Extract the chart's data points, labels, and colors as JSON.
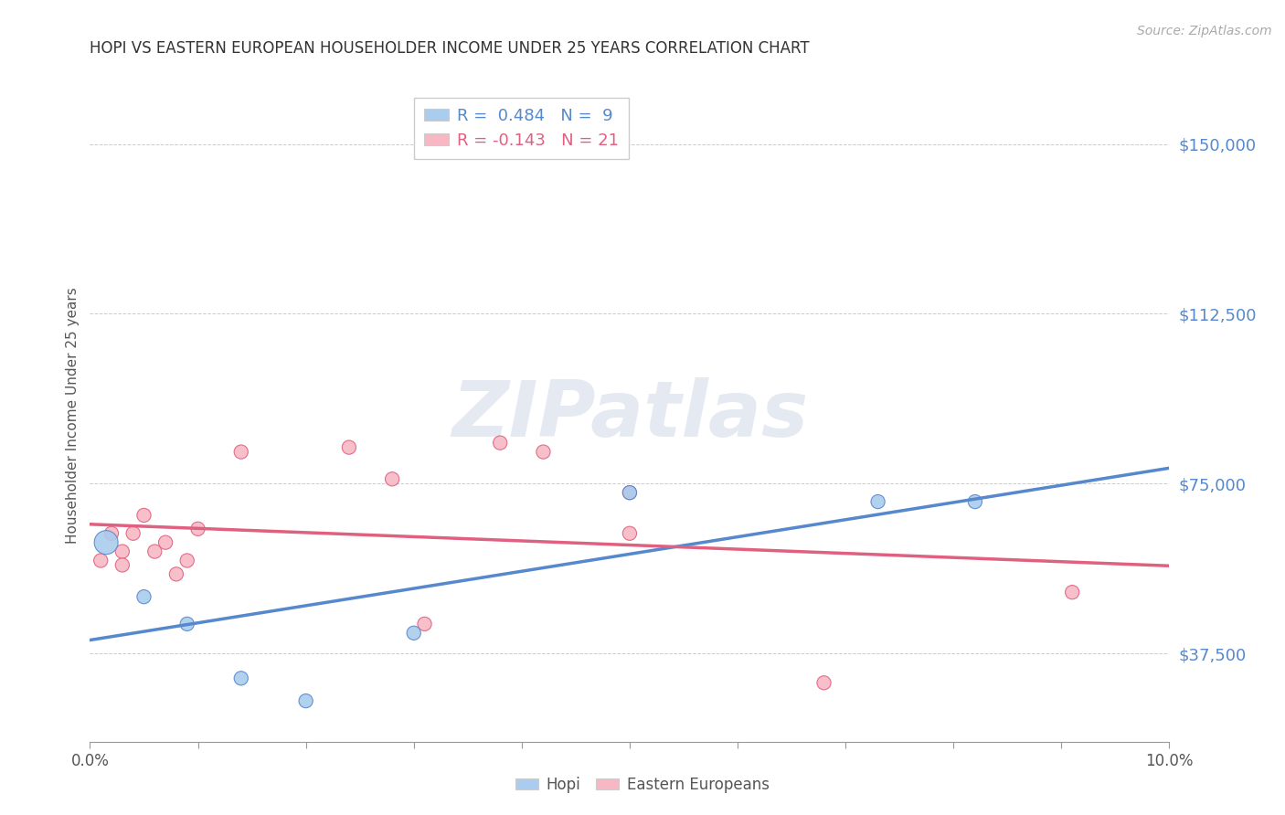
{
  "title": "HOPI VS EASTERN EUROPEAN HOUSEHOLDER INCOME UNDER 25 YEARS CORRELATION CHART",
  "source": "Source: ZipAtlas.com",
  "ylabel": "Householder Income Under 25 years",
  "xlim": [
    0.0,
    0.1
  ],
  "ylim": [
    18000,
    162000
  ],
  "yticks": [
    37500,
    75000,
    112500,
    150000
  ],
  "ytick_labels": [
    "$37,500",
    "$75,000",
    "$112,500",
    "$150,000"
  ],
  "xticks": [
    0.0,
    0.01,
    0.02,
    0.03,
    0.04,
    0.05,
    0.06,
    0.07,
    0.08,
    0.09,
    0.1
  ],
  "xtick_labels": [
    "0.0%",
    "",
    "",
    "",
    "",
    "",
    "",
    "",
    "",
    "",
    "10.0%"
  ],
  "hopi_color": "#aaccee",
  "eastern_color": "#f7b8c4",
  "hopi_line_color": "#5588cc",
  "eastern_line_color": "#e06080",
  "legend_label_hopi": "R =  0.484   N =  9",
  "legend_label_eastern": "R = -0.143   N = 21",
  "background_color": "#ffffff",
  "watermark_text": "ZIPatlas",
  "hopi_points": [
    [
      0.0015,
      62000
    ],
    [
      0.005,
      50000
    ],
    [
      0.009,
      44000
    ],
    [
      0.014,
      32000
    ],
    [
      0.02,
      27000
    ],
    [
      0.03,
      42000
    ],
    [
      0.05,
      73000
    ],
    [
      0.073,
      71000
    ],
    [
      0.082,
      71000
    ]
  ],
  "eastern_points": [
    [
      0.001,
      58000
    ],
    [
      0.002,
      64000
    ],
    [
      0.003,
      60000
    ],
    [
      0.003,
      57000
    ],
    [
      0.004,
      64000
    ],
    [
      0.005,
      68000
    ],
    [
      0.006,
      60000
    ],
    [
      0.007,
      62000
    ],
    [
      0.008,
      55000
    ],
    [
      0.009,
      58000
    ],
    [
      0.01,
      65000
    ],
    [
      0.014,
      82000
    ],
    [
      0.024,
      83000
    ],
    [
      0.028,
      76000
    ],
    [
      0.031,
      44000
    ],
    [
      0.038,
      84000
    ],
    [
      0.042,
      82000
    ],
    [
      0.05,
      73000
    ],
    [
      0.05,
      64000
    ],
    [
      0.068,
      31000
    ],
    [
      0.091,
      51000
    ]
  ],
  "hopi_marker_sizes": [
    350,
    120,
    120,
    120,
    120,
    120,
    120,
    120,
    120
  ],
  "eastern_marker_sizes": [
    120,
    120,
    120,
    120,
    120,
    120,
    120,
    120,
    120,
    120,
    120,
    120,
    120,
    120,
    120,
    120,
    120,
    120,
    120,
    120,
    120
  ]
}
